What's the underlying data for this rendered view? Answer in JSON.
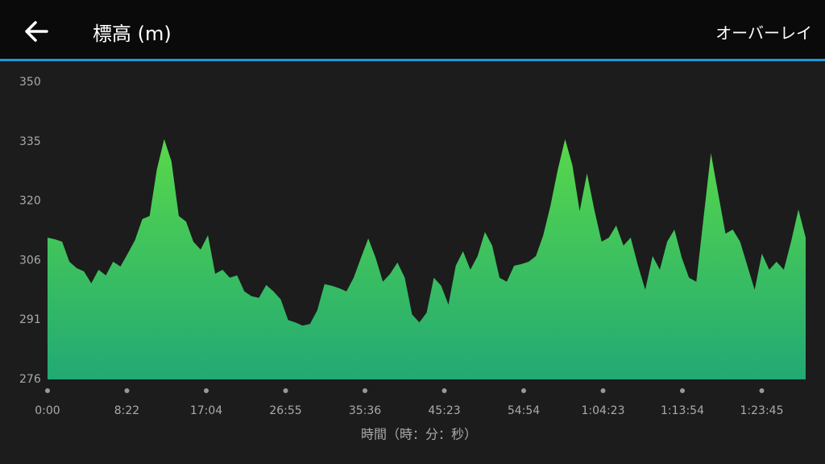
{
  "header": {
    "title": "標高 (m)",
    "action": "オーバーレイ"
  },
  "chart_data": {
    "type": "area",
    "x_label": "時間（時：分：秒）",
    "x_tick_labels": [
      "0:00",
      "8:22",
      "17:04",
      "26:55",
      "35:36",
      "45:23",
      "54:54",
      "1:04:23",
      "1:13:54",
      "1:23:45"
    ],
    "values": [
      311.3,
      310.9,
      310.3,
      305.3,
      303.7,
      302.9,
      299.9,
      303.3,
      301.9,
      305.3,
      304.1,
      307.3,
      310.7,
      315.9,
      316.7,
      328.3,
      335.8,
      330.3,
      316.7,
      315.3,
      310.3,
      308.3,
      311.9,
      302.3,
      303.3,
      301.3,
      301.9,
      297.9,
      296.7,
      296.3,
      299.5,
      297.9,
      295.9,
      290.8,
      290.2,
      289.4,
      289.8,
      293.2,
      299.7,
      299.3,
      298.7,
      297.9,
      301.3,
      306.3,
      311.1,
      306.3,
      300.3,
      302.3,
      305.1,
      301.3,
      292.2,
      290.2,
      292.6,
      301.3,
      299.3,
      294.6,
      304.3,
      307.9,
      303.3,
      306.7,
      312.7,
      309.3,
      301.3,
      300.3,
      304.3,
      304.7,
      305.3,
      306.7,
      311.9,
      319.3,
      328.3,
      335.8,
      329.3,
      317.9,
      327.3,
      318.3,
      310.3,
      311.3,
      314.3,
      309.3,
      311.3,
      304.3,
      298.3,
      306.7,
      303.3,
      310.3,
      313.3,
      306.3,
      301.3,
      300.3,
      316.3,
      332.3,
      322.3,
      312.3,
      313.3,
      310.3,
      304.3,
      298.3,
      307.3,
      303.3,
      305.3,
      303.3,
      310.3,
      318.3,
      311.3
    ],
    "gradient": [
      "#58d84a",
      "#22a974"
    ],
    "ylim": [
      276,
      350
    ],
    "yticks": [
      276,
      {
        "value": 290.8,
        "label": "291"
      },
      {
        "value": 305.6,
        "label": "306"
      },
      {
        "value": 320.4,
        "label": "320"
      },
      {
        "value": 335.2,
        "label": "335"
      },
      350
    ],
    "grid": false
  }
}
